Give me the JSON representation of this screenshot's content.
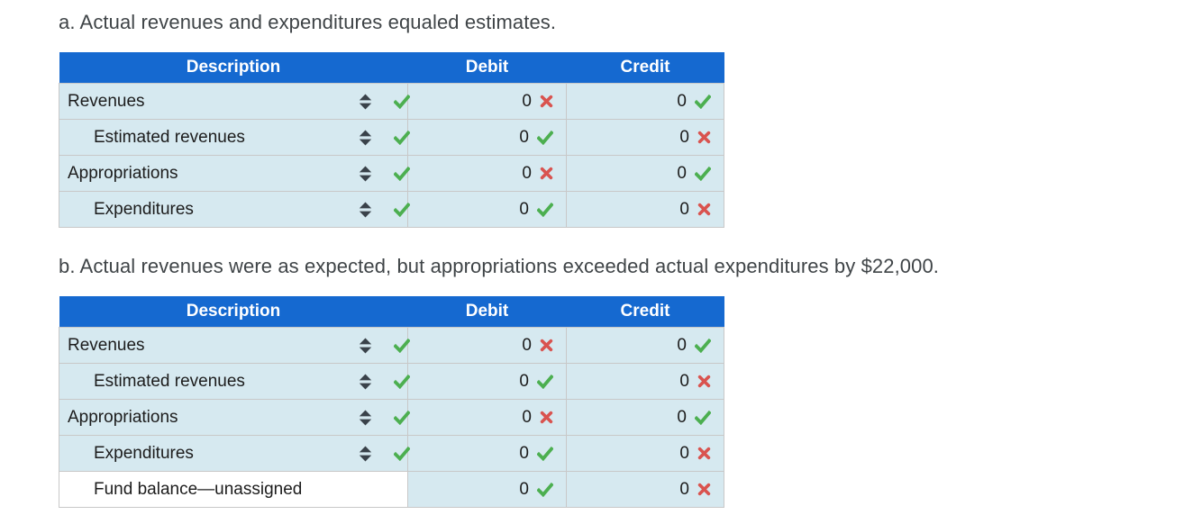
{
  "colors": {
    "header_bg": "#1569d0",
    "header_text": "#ffffff",
    "row_bg": "#d6e9f0",
    "white_cell_bg": "#ffffff",
    "correct": "#4caf50",
    "incorrect": "#d9534f",
    "selector": "#3a424a",
    "border": "#c8c8c8",
    "title_text": "#3f4447",
    "cell_text": "#1c1c1c"
  },
  "icons": {
    "selector": "up-down-arrows-icon",
    "correct": "check-icon",
    "incorrect": "x-icon"
  },
  "sections": [
    {
      "id": "a",
      "title": "a. Actual revenues and expenditures equaled estimates.",
      "table": {
        "headers": [
          "Description",
          "Debit",
          "Credit"
        ],
        "rows": [
          {
            "description": "Revenues",
            "indent": false,
            "has_selector": true,
            "selector_mark": "correct",
            "debit": "0",
            "debit_mark": "incorrect",
            "credit": "0",
            "credit_mark": "correct"
          },
          {
            "description": "Estimated revenues",
            "indent": true,
            "has_selector": true,
            "selector_mark": "correct",
            "debit": "0",
            "debit_mark": "correct",
            "credit": "0",
            "credit_mark": "incorrect"
          },
          {
            "description": "Appropriations",
            "indent": false,
            "has_selector": true,
            "selector_mark": "correct",
            "debit": "0",
            "debit_mark": "incorrect",
            "credit": "0",
            "credit_mark": "correct"
          },
          {
            "description": "Expenditures",
            "indent": true,
            "has_selector": true,
            "selector_mark": "correct",
            "debit": "0",
            "debit_mark": "correct",
            "credit": "0",
            "credit_mark": "incorrect"
          }
        ]
      }
    },
    {
      "id": "b",
      "title": "b. Actual revenues were as expected, but appropriations exceeded actual expenditures by $22,000.",
      "table": {
        "headers": [
          "Description",
          "Debit",
          "Credit"
        ],
        "rows": [
          {
            "description": "Revenues",
            "indent": false,
            "has_selector": true,
            "selector_mark": "correct",
            "debit": "0",
            "debit_mark": "incorrect",
            "credit": "0",
            "credit_mark": "correct"
          },
          {
            "description": "Estimated revenues",
            "indent": true,
            "has_selector": true,
            "selector_mark": "correct",
            "debit": "0",
            "debit_mark": "correct",
            "credit": "0",
            "credit_mark": "incorrect"
          },
          {
            "description": "Appropriations",
            "indent": false,
            "has_selector": true,
            "selector_mark": "correct",
            "debit": "0",
            "debit_mark": "incorrect",
            "credit": "0",
            "credit_mark": "correct"
          },
          {
            "description": "Expenditures",
            "indent": true,
            "has_selector": true,
            "selector_mark": "correct",
            "debit": "0",
            "debit_mark": "correct",
            "credit": "0",
            "credit_mark": "incorrect"
          },
          {
            "description": "Fund balance—unassigned",
            "indent": true,
            "has_selector": false,
            "white_bg": true,
            "debit": "0",
            "debit_mark": "correct",
            "credit": "0",
            "credit_mark": "incorrect"
          }
        ]
      }
    }
  ]
}
